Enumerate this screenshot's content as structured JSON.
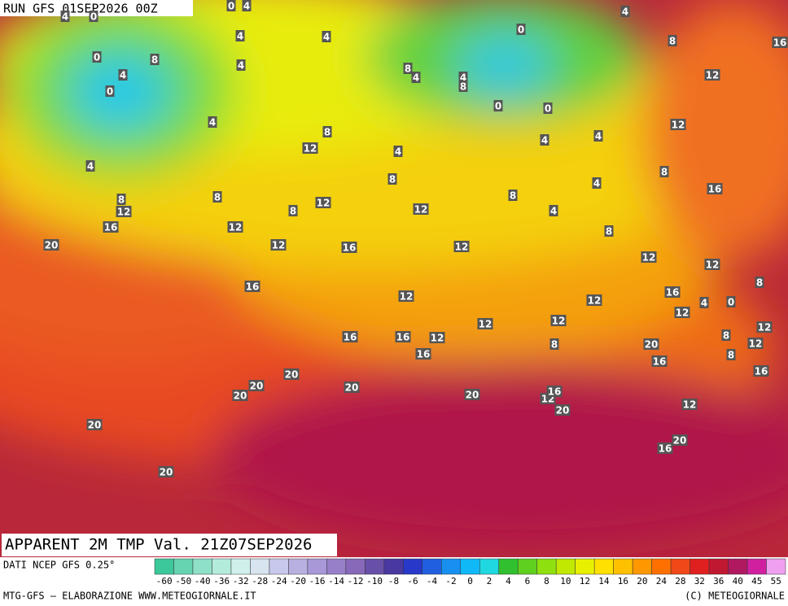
{
  "header": {
    "run": "RUN GFS 01SEP2026 00Z",
    "title": "APPARENT 2M TMP Val. 21Z07SEP2026"
  },
  "footer": {
    "source": "DATI NCEP GFS 0.25°",
    "credit": "MTG-GFS — ELABORAZIONE WWW.METEOGIORNALE.IT",
    "copyright": "(C) METEOGIORNALE"
  },
  "colorbar": {
    "labels": [
      -60,
      -50,
      -40,
      -36,
      -32,
      -28,
      -24,
      -20,
      -16,
      -14,
      -12,
      -10,
      -8,
      -6,
      -4,
      -2,
      0,
      2,
      4,
      6,
      8,
      10,
      12,
      14,
      16,
      20,
      24,
      28,
      32,
      36,
      40,
      45,
      55
    ],
    "colors": [
      "#3cc89a",
      "#66d4b0",
      "#8ee0c8",
      "#b4ecdc",
      "#d0f0ec",
      "#d8e4f0",
      "#c8c8ec",
      "#b8b0e0",
      "#a898d8",
      "#9880c8",
      "#8868b8",
      "#6850a8",
      "#4838a0",
      "#2838c8",
      "#2060e0",
      "#1890f0",
      "#10b8f8",
      "#20d8e0",
      "#30c030",
      "#60d020",
      "#90e010",
      "#c0e800",
      "#e8f000",
      "#ffe000",
      "#ffc000",
      "#ff9800",
      "#ff7000",
      "#f04818",
      "#e02020",
      "#c01830",
      "#b01860",
      "#d020a0",
      "#f0a0f0"
    ]
  },
  "map": {
    "contour_labels": [
      0,
      4,
      4,
      0,
      4,
      4,
      4,
      0,
      8,
      16,
      0,
      8,
      4,
      4,
      8,
      4,
      4,
      8,
      12,
      0,
      0,
      0,
      4,
      12,
      8,
      4,
      4,
      12,
      4,
      4,
      8,
      8,
      4,
      16,
      8,
      8,
      8,
      12,
      12,
      8,
      12,
      4,
      16,
      12,
      8,
      20,
      12,
      16,
      12,
      12,
      12,
      8,
      16,
      16,
      12,
      12,
      4,
      0,
      12,
      12,
      12,
      12,
      16,
      16,
      12,
      8,
      12,
      8,
      20,
      8,
      16,
      16,
      16,
      20,
      20,
      20,
      20,
      12,
      16,
      20,
      12,
      20,
      20,
      20,
      16,
      20
    ]
  }
}
